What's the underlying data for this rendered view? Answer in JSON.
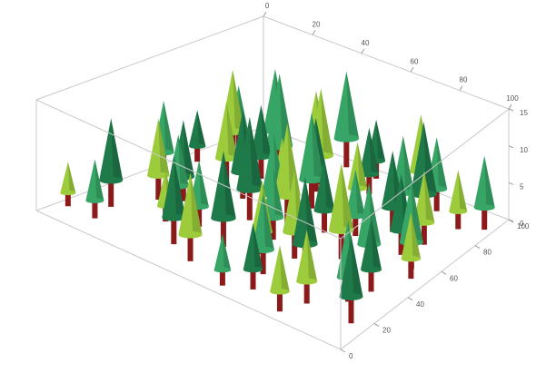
{
  "chart_data": {
    "type": "forest3d",
    "xlim": [
      0,
      100
    ],
    "xticks": [
      0,
      20,
      40,
      60,
      80,
      100
    ],
    "ylim": [
      0,
      100
    ],
    "yticks": [
      0,
      20,
      40,
      60,
      80,
      100
    ],
    "zlim": [
      0,
      15
    ],
    "zticks": [
      0,
      5,
      10,
      15
    ],
    "trunk_color": "#8b1a1a",
    "series": [
      {
        "color": "#1f7a4a",
        "x": [
          10,
          25,
          40,
          55,
          70,
          85,
          15,
          35,
          60,
          80,
          20,
          45,
          65,
          90,
          30,
          50,
          75,
          5,
          95,
          42
        ],
        "y": [
          20,
          70,
          45,
          85,
          30,
          60,
          90,
          15,
          55,
          80,
          40,
          25,
          10,
          35,
          55,
          95,
          70,
          65,
          15,
          75
        ],
        "z": [
          12,
          10,
          14,
          9,
          13,
          11,
          8,
          12,
          10,
          14,
          11,
          13,
          9,
          10,
          12,
          8,
          11,
          7,
          12,
          10
        ]
      },
      {
        "color": "#37a566",
        "x": [
          5,
          18,
          33,
          48,
          62,
          78,
          92,
          12,
          28,
          52,
          68,
          88,
          38,
          58,
          83,
          22,
          72,
          45,
          8,
          97
        ],
        "y": [
          50,
          85,
          30,
          65,
          20,
          90,
          55,
          10,
          75,
          40,
          60,
          25,
          95,
          5,
          45,
          35,
          80,
          50,
          80,
          90
        ],
        "z": [
          10,
          12,
          9,
          13,
          11,
          10,
          12,
          8,
          14,
          10,
          9,
          11,
          13,
          7,
          12,
          10,
          11,
          12,
          9,
          10
        ]
      },
      {
        "color": "#9ccc3c",
        "x": [
          3,
          15,
          30,
          44,
          58,
          73,
          87,
          20,
          37,
          63,
          80,
          95,
          50,
          25,
          68,
          10,
          55,
          90,
          40,
          77
        ],
        "y": [
          10,
          35,
          90,
          10,
          75,
          45,
          70,
          60,
          65,
          35,
          15,
          50,
          50,
          25,
          95,
          75,
          30,
          85,
          80,
          5
        ],
        "z": [
          6,
          11,
          10,
          12,
          9,
          13,
          10,
          11,
          8,
          12,
          10,
          9,
          14,
          7,
          11,
          12,
          10,
          8,
          13,
          9
        ]
      }
    ]
  }
}
